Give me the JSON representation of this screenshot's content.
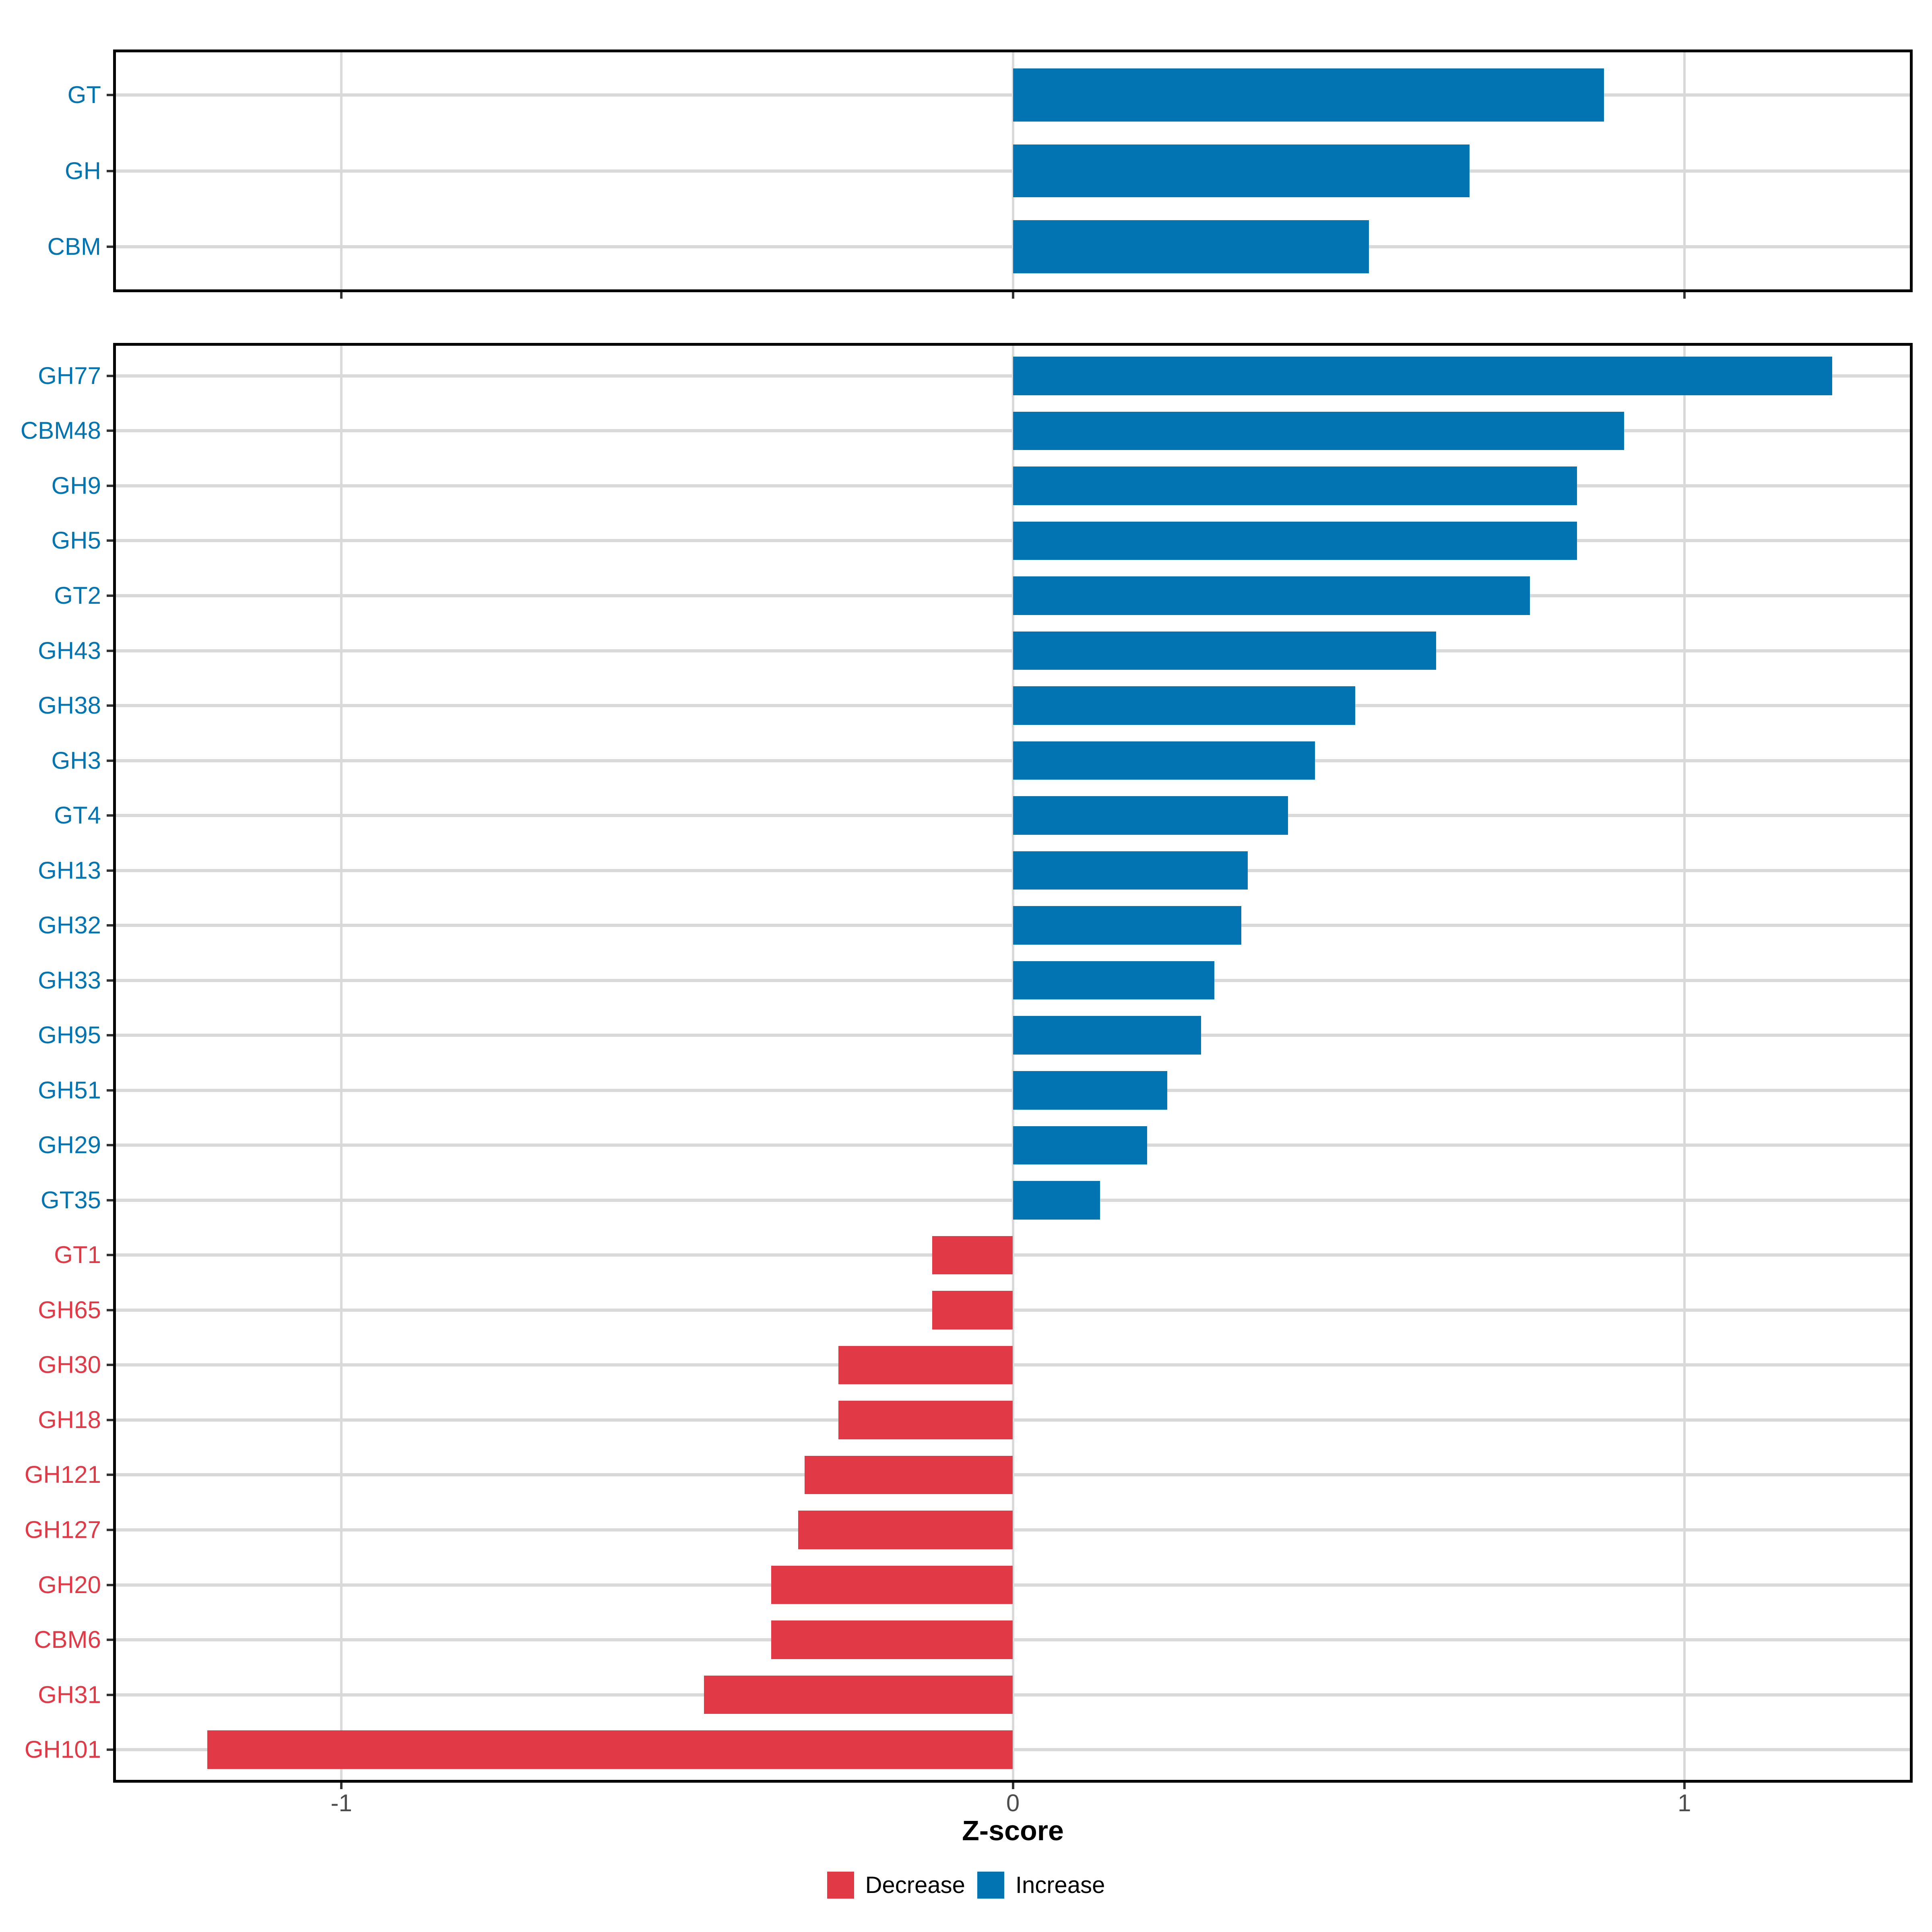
{
  "chart_data": {
    "type": "bar",
    "orientation": "horizontal",
    "xlabel": "Z-score",
    "x_ticks": [
      -1,
      0,
      1
    ],
    "x_tick_labels": [
      "-1",
      "0",
      "1"
    ],
    "x_range": [
      -1.34,
      1.34
    ],
    "grid": "major-only",
    "legend_position": "bottom",
    "legend": [
      {
        "label": "Decrease",
        "color": "#E23946"
      },
      {
        "label": "Increase",
        "color": "#0274B2"
      }
    ],
    "colors": {
      "increase": "#0274B2",
      "decrease": "#E23946",
      "gridline": "#D9D9D9",
      "panel_border": "#000000",
      "tick_mark": "#333333",
      "tick_label": "#4D4D4D"
    },
    "panels": [
      {
        "name": "cazyme-classes",
        "categories": [
          "GT",
          "GH",
          "CBM"
        ],
        "values": [
          0.88,
          0.68,
          0.53
        ],
        "directions": [
          "Increase",
          "Increase",
          "Increase"
        ]
      },
      {
        "name": "cazyme-families",
        "categories": [
          "GH77",
          "CBM48",
          "GH9",
          "GH5",
          "GT2",
          "GH43",
          "GH38",
          "GH3",
          "GT4",
          "GH13",
          "GH32",
          "GH33",
          "GH95",
          "GH51",
          "GH29",
          "GT35",
          "GT1",
          "GH65",
          "GH30",
          "GH18",
          "GH121",
          "GH127",
          "GH20",
          "CBM6",
          "GH31",
          "GH101"
        ],
        "values": [
          1.22,
          0.91,
          0.84,
          0.84,
          0.77,
          0.63,
          0.51,
          0.45,
          0.41,
          0.35,
          0.34,
          0.3,
          0.28,
          0.23,
          0.2,
          0.13,
          -0.12,
          -0.12,
          -0.26,
          -0.26,
          -0.31,
          -0.32,
          -0.36,
          -0.36,
          -0.46,
          -1.2
        ],
        "directions": [
          "Increase",
          "Increase",
          "Increase",
          "Increase",
          "Increase",
          "Increase",
          "Increase",
          "Increase",
          "Increase",
          "Increase",
          "Increase",
          "Increase",
          "Increase",
          "Increase",
          "Increase",
          "Increase",
          "Decrease",
          "Decrease",
          "Decrease",
          "Decrease",
          "Decrease",
          "Decrease",
          "Decrease",
          "Decrease",
          "Decrease",
          "Decrease"
        ]
      }
    ]
  }
}
